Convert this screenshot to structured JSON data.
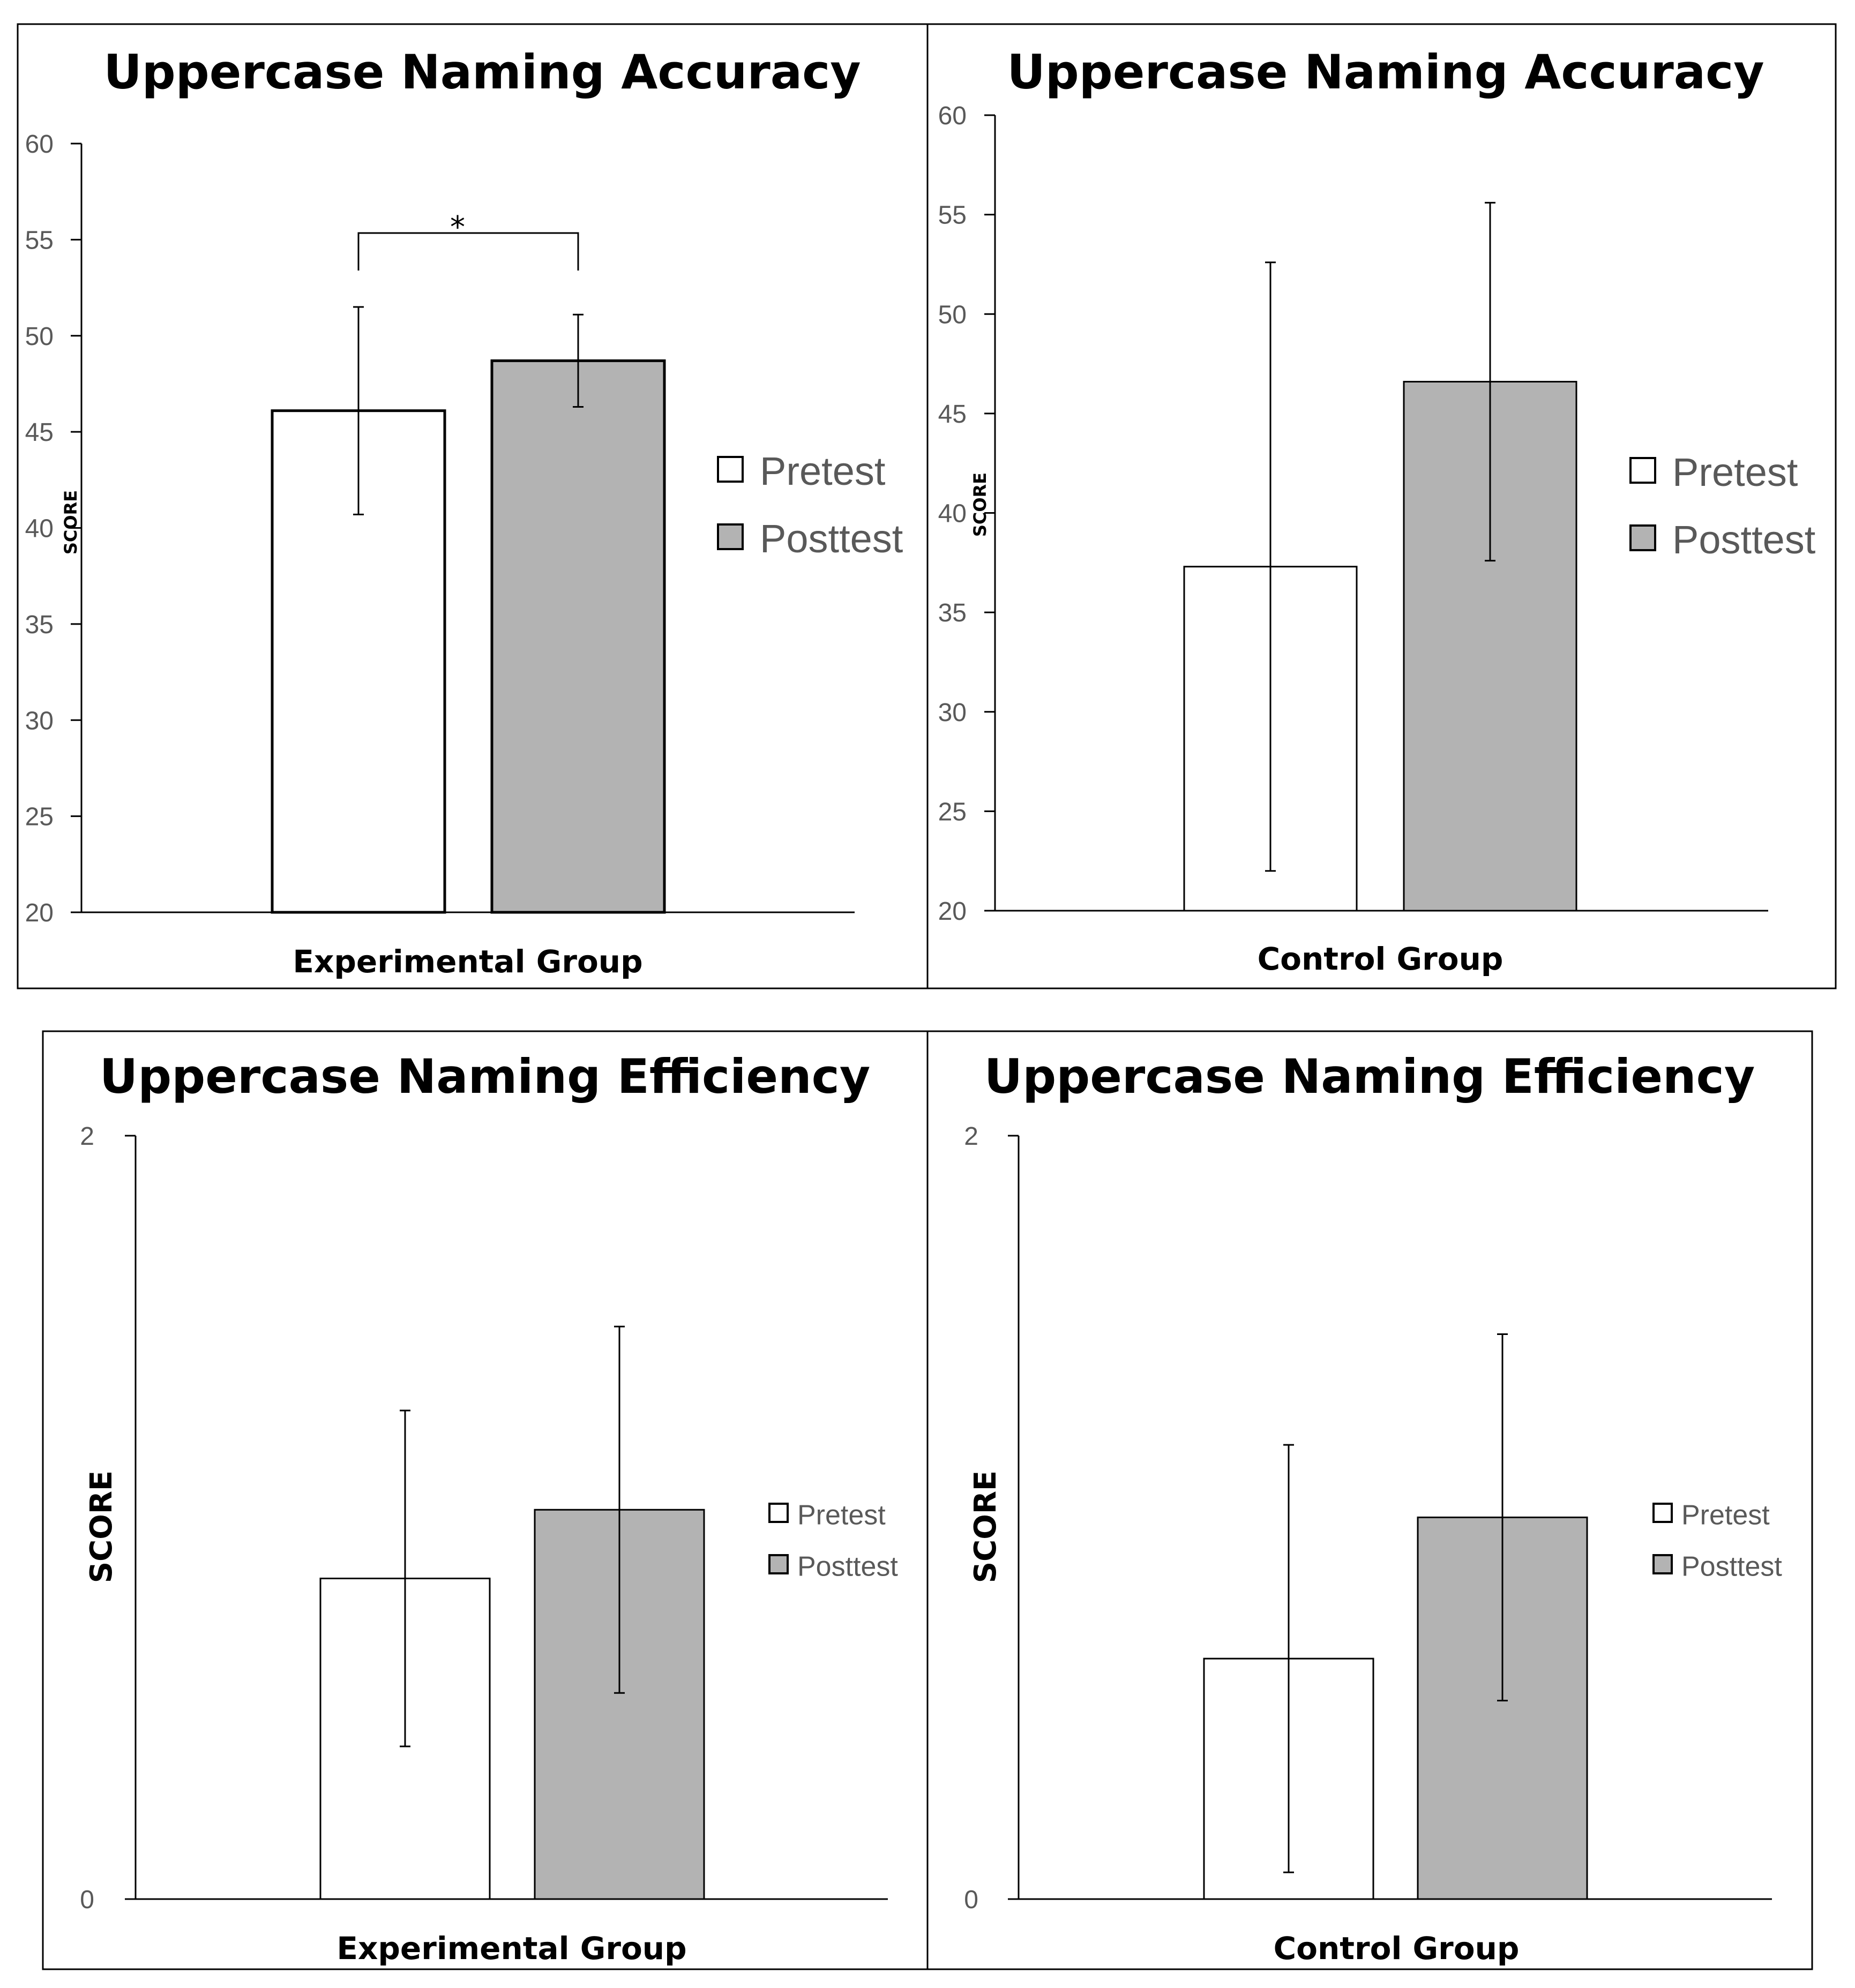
{
  "chart_data": [
    {
      "type": "bar",
      "title": "Uppercase Naming Accuracy",
      "xlabel": "Experimental Group",
      "ylabel": "SCORE",
      "ylim": [
        20,
        60
      ],
      "yticks": [
        20,
        25,
        30,
        35,
        40,
        45,
        50,
        55,
        60
      ],
      "categories": [
        "Experimental Group"
      ],
      "series": [
        {
          "name": "Pretest",
          "color": "#ffffff",
          "values": [
            46.1
          ],
          "error": [
            5.4
          ]
        },
        {
          "name": "Posttest",
          "color": "#b3b3b3",
          "values": [
            48.7
          ],
          "error": [
            2.4
          ]
        }
      ],
      "annotation": "*",
      "legend": "right"
    },
    {
      "type": "bar",
      "title": "Uppercase Naming Accuracy",
      "xlabel": "Control Group",
      "ylabel": "SCORE",
      "ylim": [
        20,
        60
      ],
      "yticks": [
        20,
        25,
        30,
        35,
        40,
        45,
        50,
        55,
        60
      ],
      "categories": [
        "Control Group"
      ],
      "series": [
        {
          "name": "Pretest",
          "color": "#ffffff",
          "values": [
            37.3
          ],
          "error": [
            15.3
          ]
        },
        {
          "name": "Posttest",
          "color": "#b3b3b3",
          "values": [
            46.6
          ],
          "error": [
            9.0
          ]
        }
      ],
      "legend": "right"
    },
    {
      "type": "bar",
      "title": "Uppercase Naming Efficiency",
      "xlabel": "Experimental Group",
      "ylabel": "SCORE",
      "ylim": [
        0,
        2
      ],
      "yticks": [
        0,
        2
      ],
      "categories": [
        "Experimental Group"
      ],
      "series": [
        {
          "name": "Pretest",
          "color": "#ffffff",
          "values": [
            0.84
          ],
          "error": [
            0.44
          ]
        },
        {
          "name": "Posttest",
          "color": "#b3b3b3",
          "values": [
            1.02
          ],
          "error": [
            0.48
          ]
        }
      ],
      "legend": "right"
    },
    {
      "type": "bar",
      "title": "Uppercase Naming Efficiency",
      "xlabel": "Control Group",
      "ylabel": "SCORE",
      "ylim": [
        0,
        2
      ],
      "yticks": [
        0,
        2
      ],
      "categories": [
        "Control Group"
      ],
      "series": [
        {
          "name": "Pretest",
          "color": "#ffffff",
          "values": [
            0.63
          ],
          "error": [
            0.56
          ]
        },
        {
          "name": "Posttest",
          "color": "#b3b3b3",
          "values": [
            1.0
          ],
          "error": [
            0.48
          ]
        }
      ],
      "legend": "right"
    }
  ]
}
